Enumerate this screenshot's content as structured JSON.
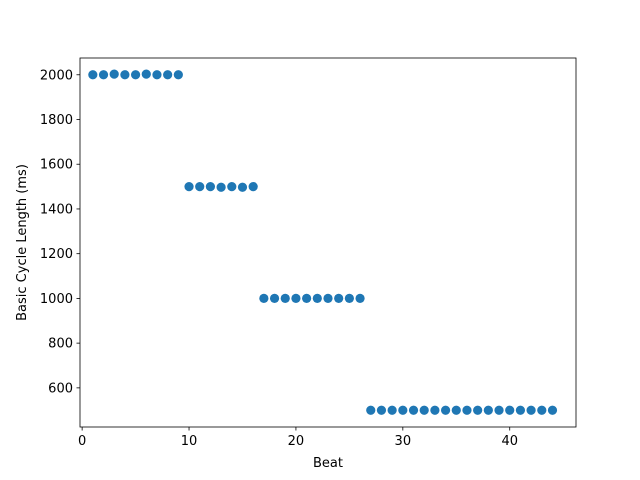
{
  "chart_data": {
    "type": "scatter",
    "title": "",
    "xlabel": "Beat",
    "ylabel": "Basic Cycle Length (ms)",
    "xlim": [
      -0.2,
      46.2
    ],
    "ylim": [
      425,
      2075
    ],
    "xticks": [
      0,
      10,
      20,
      30,
      40
    ],
    "yticks": [
      600,
      800,
      1000,
      1200,
      1400,
      1600,
      1800,
      2000
    ],
    "grid": false,
    "marker_color": "#1f77b4",
    "series": [
      {
        "x": [
          1,
          2,
          3,
          4,
          5,
          6,
          7,
          8,
          9,
          10,
          11,
          12,
          13,
          14,
          15,
          16,
          17,
          18,
          19,
          20,
          21,
          22,
          23,
          24,
          25,
          26,
          27,
          28,
          29,
          30,
          31,
          32,
          33,
          34,
          35,
          36,
          37,
          38,
          39,
          40,
          41,
          42,
          43,
          44
        ],
        "y": [
          2000,
          2000,
          2003,
          2000,
          2000,
          2003,
          2000,
          2000,
          2000,
          1500,
          1500,
          1500,
          1497,
          1500,
          1497,
          1500,
          1000,
          1000,
          1000,
          1000,
          1000,
          1000,
          1000,
          1000,
          1000,
          1000,
          500,
          500,
          500,
          500,
          500,
          500,
          500,
          500,
          500,
          500,
          500,
          500,
          500,
          500,
          500,
          500,
          500,
          500
        ]
      }
    ]
  }
}
